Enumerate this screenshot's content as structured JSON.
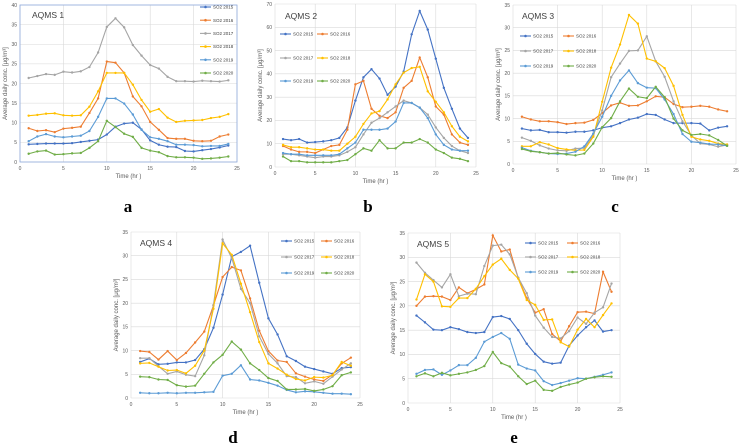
{
  "colors": {
    "SO2 2015": "#4472C4",
    "SO2 2016": "#ED7D31",
    "SO2 2017": "#A5A5A5",
    "SO2 2018": "#FFC000",
    "SO2 2019": "#5B9BD5",
    "SO2 2020": "#70AD47"
  },
  "chart_data": [
    {
      "type": "line",
      "panel": "a",
      "title": "AQMS 1",
      "xlabel": "Time (hr )",
      "ylabel": "Average daily conc. [μg/m³]",
      "xlim": [
        0,
        25
      ],
      "xticks": [
        0,
        5,
        10,
        15,
        20,
        25
      ],
      "ylim": [
        0,
        40
      ],
      "yticks": [
        0,
        5,
        10,
        15,
        20,
        25,
        30,
        35,
        40
      ],
      "grid": true,
      "legend": "top-right",
      "x": [
        1,
        2,
        3,
        4,
        5,
        6,
        7,
        8,
        9,
        10,
        11,
        12,
        13,
        14,
        15,
        16,
        17,
        18,
        19,
        20,
        21,
        22,
        23,
        24
      ],
      "series": [
        {
          "name": "SO2 2015",
          "values": [
            4.5,
            4.6,
            4.7,
            4.7,
            4.7,
            4.8,
            5.1,
            5.4,
            5.7,
            7,
            9,
            9.8,
            10,
            8.3,
            5.5,
            4.4,
            3.9,
            3.8,
            2.8,
            2.7,
            3,
            3.3,
            3.7,
            4.2
          ]
        },
        {
          "name": "SO2 2016",
          "values": [
            8.6,
            7.9,
            8.1,
            7.6,
            8.5,
            8.7,
            9,
            12.5,
            16.2,
            25.6,
            25.3,
            22.7,
            16.7,
            14.2,
            10.2,
            8.2,
            6.1,
            5.9,
            5.9,
            5.4,
            5.3,
            5.4,
            6.5,
            7
          ]
        },
        {
          "name": "SO2 2017",
          "values": [
            21.4,
            21.9,
            22.4,
            22.2,
            23,
            22.8,
            23.1,
            24.2,
            27.9,
            34.4,
            36.6,
            34.3,
            29.8,
            27.1,
            24.7,
            23.8,
            21.7,
            20.6,
            20.6,
            20.5,
            20.7,
            20.6,
            20.5,
            20.8
          ]
        },
        {
          "name": "SO2 2018",
          "values": [
            11.8,
            12,
            12.3,
            12.4,
            11.9,
            11.8,
            11.9,
            14.1,
            18,
            22.7,
            22.7,
            22.7,
            19.7,
            15.8,
            12.8,
            13.5,
            11.3,
            10.2,
            10.5,
            10.6,
            10.7,
            11.2,
            11.5,
            12.2
          ]
        },
        {
          "name": "SO2 2019",
          "values": [
            5.3,
            6.5,
            7.1,
            6.5,
            6.3,
            6.5,
            6.7,
            7.9,
            11.5,
            16.2,
            16.2,
            14.9,
            12.1,
            8.2,
            6.3,
            5.9,
            5.3,
            4.4,
            4.4,
            4.3,
            4,
            4.1,
            4.1,
            4.6
          ]
        },
        {
          "name": "SO2 2020",
          "values": [
            2.1,
            2.7,
            2.9,
            1.9,
            2,
            2.2,
            2.3,
            3.6,
            5.3,
            10.5,
            8.9,
            7.2,
            6.4,
            3.6,
            2.9,
            2.5,
            1.5,
            1.2,
            1.2,
            1.1,
            0.8,
            0.9,
            1.1,
            1.4
          ]
        }
      ]
    },
    {
      "type": "line",
      "panel": "b",
      "title": "AQMS 2",
      "xlabel": "Time (hr )",
      "ylabel": "Average daily conc. [μg/m³]",
      "xlim": [
        0,
        25
      ],
      "xticks": [
        0,
        5,
        10,
        15,
        20,
        25
      ],
      "ylim": [
        0,
        70
      ],
      "yticks": [
        0,
        10,
        20,
        30,
        40,
        50,
        60,
        70
      ],
      "grid": true,
      "legend": "top-left",
      "x": [
        1,
        2,
        3,
        4,
        5,
        6,
        7,
        8,
        9,
        10,
        11,
        12,
        13,
        14,
        15,
        16,
        17,
        18,
        19,
        20,
        21,
        22,
        23,
        24
      ],
      "series": [
        {
          "name": "SO2 2015",
          "values": [
            12,
            11.5,
            12,
            10.5,
            10.7,
            11,
            11.5,
            12.5,
            17,
            28.5,
            38.5,
            42,
            38,
            31,
            34.5,
            41,
            57,
            67,
            59,
            46.5,
            34,
            25,
            16.5,
            12.5
          ]
        },
        {
          "name": "SO2 2016",
          "values": [
            9,
            7.5,
            6.5,
            6.5,
            6,
            7.5,
            9,
            9.5,
            16,
            35.5,
            37,
            25,
            22,
            21,
            23.5,
            34,
            37,
            47,
            38.5,
            26,
            22.5,
            14,
            10.5,
            9.5
          ]
        },
        {
          "name": "SO2 2017",
          "values": [
            5.5,
            5.5,
            5,
            4.5,
            4,
            4.5,
            4.5,
            5,
            6.5,
            8.5,
            14,
            19,
            21,
            23.5,
            26,
            28.5,
            27.5,
            25.5,
            22.5,
            17,
            12.5,
            9,
            7,
            6
          ]
        },
        {
          "name": "SO2 2018",
          "values": [
            9.5,
            8.5,
            8.5,
            8,
            7.5,
            7.5,
            7,
            7,
            10,
            13,
            18.5,
            23,
            24,
            29,
            35.5,
            40.5,
            42.5,
            43,
            32.5,
            28,
            23.5,
            17.5,
            13,
            11
          ]
        },
        {
          "name": "SO2 2019",
          "values": [
            6,
            5.5,
            5.5,
            5,
            5,
            5,
            5,
            5.5,
            8,
            10.5,
            16,
            16,
            16,
            16.5,
            19.5,
            27.5,
            27.5,
            25.5,
            21,
            14,
            9.5,
            7.5,
            7,
            7
          ]
        },
        {
          "name": "SO2 2020",
          "values": [
            4.5,
            2.5,
            2.5,
            2,
            2,
            2,
            2,
            2.5,
            3,
            5.5,
            8,
            7,
            11.5,
            8,
            8,
            10.5,
            10.5,
            12,
            10.5,
            7.5,
            6,
            4,
            3.5,
            2.5
          ]
        }
      ]
    },
    {
      "type": "line",
      "panel": "c",
      "title": "AQMS 3",
      "xlabel": "Time (hr )",
      "ylabel": "Average daily conc. [μg/m³]",
      "xlim": [
        0,
        25
      ],
      "xticks": [
        0,
        5,
        10,
        15,
        20,
        25
      ],
      "ylim": [
        0,
        35
      ],
      "yticks": [
        0,
        5,
        10,
        15,
        20,
        25,
        30,
        35
      ],
      "grid": true,
      "legend": "top-left",
      "x": [
        1,
        2,
        3,
        4,
        5,
        6,
        7,
        8,
        9,
        10,
        11,
        12,
        13,
        14,
        15,
        16,
        17,
        18,
        19,
        20,
        21,
        22,
        23,
        24
      ],
      "series": [
        {
          "name": "SO2 2015",
          "values": [
            7.8,
            7.4,
            7.5,
            7,
            7,
            6.9,
            7.1,
            7.1,
            7.4,
            8,
            8.3,
            9,
            9.8,
            10.2,
            11,
            10.8,
            9.8,
            9,
            9,
            9,
            8.9,
            7.4,
            8,
            8.3
          ]
        },
        {
          "name": "SO2 2016",
          "values": [
            10.4,
            9.8,
            9.4,
            9.4,
            9.2,
            8.8,
            9,
            9.1,
            9.7,
            11.2,
            12.9,
            13.5,
            12.8,
            12.9,
            13.8,
            14.9,
            14.7,
            13.2,
            12.5,
            12.6,
            12.8,
            12.6,
            12,
            11.6
          ]
        },
        {
          "name": "SO2 2017",
          "values": [
            5.8,
            5.1,
            4.1,
            3.4,
            3,
            2.9,
            3.4,
            3.5,
            6.3,
            11.8,
            19.1,
            22.1,
            24.9,
            25,
            28.1,
            22.6,
            19.2,
            13.8,
            9.4,
            6.3,
            4.5,
            4.3,
            3.8,
            4.2
          ]
        },
        {
          "name": "SO2 2018",
          "values": [
            3.9,
            3.9,
            4.8,
            4.3,
            3.5,
            3.2,
            3,
            3.1,
            6,
            13.7,
            21.2,
            26.3,
            32.8,
            30.9,
            23.2,
            22.6,
            21.1,
            17.2,
            10.8,
            6,
            5.4,
            5.1,
            4.5,
            4.3
          ]
        },
        {
          "name": "SO2 2019",
          "values": [
            3.6,
            2.9,
            2.6,
            2.3,
            2.2,
            2.3,
            2.7,
            3.9,
            6.7,
            10.4,
            15,
            18.4,
            20.6,
            17.8,
            16.8,
            16.7,
            14.2,
            11,
            6.6,
            4.9,
            4.7,
            4.4,
            4.3,
            4
          ]
        },
        {
          "name": "SO2 2020",
          "values": [
            3.3,
            2.8,
            2.6,
            2.3,
            2.4,
            2.1,
            1.9,
            2.3,
            4.5,
            8.1,
            10.1,
            13.8,
            16.6,
            14.8,
            14.5,
            17,
            14.7,
            10,
            7.4,
            6.4,
            6.6,
            6.3,
            5.3,
            4
          ]
        }
      ]
    },
    {
      "type": "line",
      "panel": "d",
      "title": "AQMS 4",
      "xlabel": "Time (hr )",
      "ylabel": "Average daily conc. [μg/m³]",
      "xlim": [
        0,
        25
      ],
      "xticks": [
        0,
        5,
        10,
        15,
        20,
        25
      ],
      "ylim": [
        0,
        35
      ],
      "yticks": [
        0,
        5,
        10,
        15,
        20,
        25,
        30,
        35
      ],
      "grid": true,
      "legend": "top-right",
      "x": [
        1,
        2,
        3,
        4,
        5,
        6,
        7,
        8,
        9,
        10,
        11,
        12,
        13,
        14,
        15,
        16,
        17,
        18,
        19,
        20,
        21,
        22,
        23,
        24
      ],
      "series": [
        {
          "name": "SO2 2015",
          "values": [
            7.6,
            8.3,
            7.1,
            7.2,
            7.5,
            7.5,
            8,
            10.3,
            14.8,
            21.8,
            29.8,
            30.8,
            32.1,
            24.3,
            16.8,
            13.4,
            8.8,
            7.8,
            6.6,
            6.1,
            5.6,
            5.1,
            6.3,
            6.5
          ]
        },
        {
          "name": "SO2 2016",
          "values": [
            9.9,
            9.7,
            8.1,
            9.9,
            8,
            9.5,
            11.7,
            14,
            19.5,
            25.5,
            27.6,
            26.9,
            21,
            14.2,
            9.9,
            7.9,
            7.6,
            5.2,
            4.5,
            3.9,
            3.6,
            4.9,
            7.3,
            8.5
          ]
        },
        {
          "name": "SO2 2017",
          "values": [
            8.4,
            8.4,
            6.7,
            5.1,
            5.6,
            4.9,
            4.6,
            9,
            19.6,
            33.4,
            29.5,
            23,
            20,
            13,
            9.3,
            7.3,
            4.6,
            4.4,
            3.1,
            3.5,
            3,
            4.5,
            6,
            7.3
          ]
        },
        {
          "name": "SO2 2018",
          "values": [
            7.3,
            7.4,
            6.6,
            5.8,
            5.9,
            5.2,
            6.8,
            10,
            18.8,
            32.6,
            30.2,
            24.1,
            18.1,
            11.8,
            7.3,
            6.2,
            4.9,
            4,
            3.7,
            4.4,
            4.3,
            4.8,
            7.6,
            6.8
          ]
        },
        {
          "name": "SO2 2019",
          "values": [
            1.1,
            1,
            1,
            1.1,
            1,
            1.1,
            1.1,
            1.2,
            1.3,
            4.7,
            5.1,
            6.9,
            3.9,
            3.7,
            3.2,
            2.6,
            1.7,
            1.2,
            1.4,
            1.3,
            1.1,
            0.9,
            0.9,
            0.8
          ]
        },
        {
          "name": "SO2 2020",
          "values": [
            4.5,
            4.4,
            3.9,
            3.8,
            2.7,
            2.4,
            2.6,
            5.1,
            7.5,
            9.1,
            11.9,
            10.2,
            7.3,
            5.9,
            4.2,
            3.6,
            1.8,
            1.8,
            1.9,
            1.5,
            1.8,
            2.5,
            4.8,
            5.4
          ]
        }
      ]
    },
    {
      "type": "line",
      "panel": "e",
      "title": "AQMS 5",
      "xlabel": "Time (hr )",
      "ylabel": "Average daily conc. [μg/m³]",
      "xlim": [
        0,
        25
      ],
      "xticks": [
        0,
        5,
        10,
        15,
        20,
        25
      ],
      "ylim": [
        0,
        35
      ],
      "yticks": [
        0,
        5,
        10,
        15,
        20,
        25,
        30,
        35
      ],
      "grid": true,
      "legend": "top-right",
      "x": [
        1,
        2,
        3,
        4,
        5,
        6,
        7,
        8,
        9,
        10,
        11,
        12,
        13,
        14,
        15,
        16,
        17,
        18,
        19,
        20,
        21,
        22,
        23,
        24
      ],
      "series": [
        {
          "name": "SO2 2015",
          "values": [
            18,
            16.6,
            15.1,
            15,
            15.6,
            15.2,
            14.6,
            14.4,
            14.6,
            17.7,
            17.9,
            17.3,
            15,
            12.2,
            10.1,
            8.5,
            8.1,
            8.3,
            11.8,
            13.9,
            15.6,
            17,
            14.7,
            15
          ]
        },
        {
          "name": "SO2 2016",
          "values": [
            20,
            21.9,
            22,
            21.9,
            21.2,
            23.8,
            22.6,
            23.4,
            24.4,
            34.5,
            31.2,
            31.6,
            25.7,
            21.6,
            18.6,
            19.3,
            14.2,
            12.7,
            15.8,
            18.7,
            18.8,
            18.4,
            27,
            22.9
          ]
        },
        {
          "name": "SO2 2017",
          "values": [
            28.9,
            26.8,
            25.3,
            23.8,
            26.5,
            22,
            22.5,
            22.4,
            28.2,
            32.4,
            32.6,
            30.6,
            25.8,
            22.6,
            18,
            15.5,
            13.6,
            13.3,
            14.8,
            17.6,
            16.3,
            18.6,
            19.7,
            24.6
          ]
        },
        {
          "name": "SO2 2018",
          "values": [
            21.3,
            26.5,
            25,
            19.9,
            19.8,
            21.6,
            21.6,
            23.5,
            26.1,
            28.5,
            29.7,
            27.4,
            25.6,
            21.2,
            20.2,
            17.1,
            17.2,
            12.5,
            11.6,
            15.1,
            17.3,
            15.6,
            18.1,
            20.5
          ]
        },
        {
          "name": "SO2 2019",
          "values": [
            6,
            6.8,
            6.9,
            5.8,
            6.7,
            7.8,
            7.8,
            9.3,
            12.6,
            13.6,
            14.4,
            13.2,
            7.9,
            7.1,
            6.7,
            4.5,
            3.7,
            4.1,
            4.6,
            5.1,
            5,
            5.4,
            5.8,
            6.3
          ]
        },
        {
          "name": "SO2 2020",
          "values": [
            5.5,
            6.1,
            5.5,
            6.2,
            5.7,
            6,
            6.3,
            6.8,
            7.6,
            10.5,
            8.2,
            7.5,
            5.5,
            3.9,
            4.6,
            2.7,
            2.5,
            3.3,
            3.8,
            4.2,
            5,
            5.3,
            5.5,
            5.4
          ]
        }
      ]
    }
  ]
}
